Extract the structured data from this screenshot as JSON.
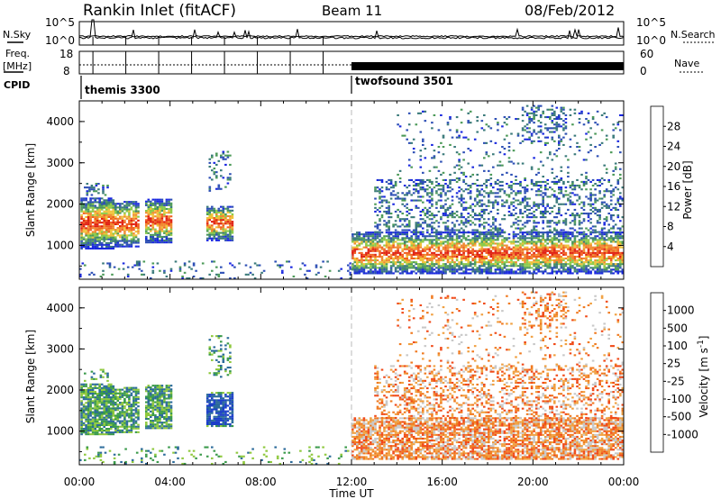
{
  "header": {
    "station": "Rankin Inlet (fitACF)",
    "beam": "Beam 11",
    "date": "08/Feb/2012"
  },
  "nsky_panel": {
    "left_label": "N.Sky",
    "right_label": "N.Search",
    "left_ticks": [
      "10^5",
      "10^0"
    ],
    "right_ticks": [
      "10^5",
      "10^0"
    ]
  },
  "freq_panel": {
    "left_label_1": "Freq.",
    "left_label_2": "[MHz]",
    "right_label": "Nave",
    "left_ticks": [
      "18",
      "8"
    ],
    "right_ticks": [
      "60",
      "0"
    ]
  },
  "cpid": {
    "label": "CPID",
    "modes": [
      {
        "name": "themis 3300",
        "start_hour": 0
      },
      {
        "name": "twofsound 3501",
        "start_hour": 12
      }
    ]
  },
  "colors": {
    "power": [
      "#1a28e0",
      "#2d4fb5",
      "#3a7a7a",
      "#4c9a58",
      "#8ccb4a",
      "#f0c23a",
      "#f08a30",
      "#f06020",
      "#e02010"
    ],
    "velocity": [
      "#e01818",
      "#f04a18",
      "#f07a20",
      "#f0a040",
      "#c8c8c8",
      "#8ec83c",
      "#3a9a4a",
      "#2a6a9a",
      "#1a3ec8"
    ]
  },
  "chart_data": [
    {
      "type": "heatmap",
      "title": "Power",
      "ylabel": "Slant Range [km]",
      "xlabel": "Time UT",
      "x_ticks": [
        "00:00",
        "04:00",
        "08:00",
        "12:00",
        "16:00",
        "20:00",
        "00:00"
      ],
      "xlim_hours": [
        0,
        24
      ],
      "ylim": [
        180,
        4500
      ],
      "y_ticks": [
        1000,
        2000,
        3000,
        4000
      ],
      "colorbar": {
        "label": "Power [dB]",
        "ticks": [
          4,
          8,
          12,
          16,
          20,
          24,
          28
        ],
        "range": [
          0,
          32
        ]
      },
      "mode_change_hour": 12
    },
    {
      "type": "heatmap",
      "title": "Velocity",
      "ylabel": "Slant Range [km]",
      "xlabel": "Time UT",
      "x_ticks": [
        "00:00",
        "04:00",
        "08:00",
        "12:00",
        "16:00",
        "20:00",
        "00:00"
      ],
      "xlim_hours": [
        0,
        24
      ],
      "ylim": [
        180,
        4500
      ],
      "y_ticks": [
        1000,
        2000,
        3000,
        4000
      ],
      "colorbar": {
        "label": "Velocity [m s^-1]",
        "ticks": [
          "1000",
          "500",
          "100",
          "25",
          "-25",
          "-100",
          "-500",
          "-1000"
        ]
      },
      "mode_change_hour": 12
    }
  ]
}
